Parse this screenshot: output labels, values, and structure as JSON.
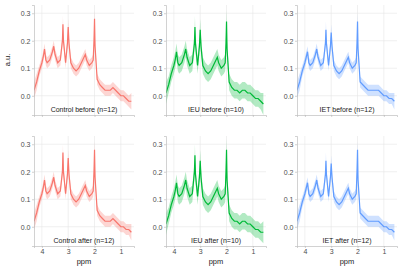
{
  "chart_data": [
    {
      "type": "line",
      "title": "Control before (n=12)",
      "color": "#F8766D",
      "grid": true,
      "tick_labels": "y",
      "y_label": "a.u.",
      "xlim": [
        4.3,
        0.5
      ],
      "xticks": [
        4,
        3,
        2,
        1
      ],
      "ylim": [
        -0.07,
        0.33
      ],
      "yticks": [
        {
          "value": 0,
          "label": "0.0"
        },
        0.1,
        0.2,
        0.3
      ],
      "x": [
        4.3,
        4.2,
        4.1,
        4.0,
        3.95,
        3.9,
        3.85,
        3.8,
        3.7,
        3.6,
        3.55,
        3.5,
        3.4,
        3.3,
        3.22,
        3.2,
        3.18,
        3.1,
        3.03,
        3.0,
        2.97,
        2.9,
        2.8,
        2.7,
        2.6,
        2.5,
        2.4,
        2.35,
        2.3,
        2.2,
        2.1,
        2.05,
        2.02,
        2.0,
        1.98,
        1.9,
        1.8,
        1.7,
        1.6,
        1.5,
        1.4,
        1.3,
        1.2,
        1.1,
        1.0,
        0.9,
        0.8,
        0.7,
        0.6
      ],
      "values": [
        0.02,
        0.05,
        0.09,
        0.12,
        0.14,
        0.17,
        0.13,
        0.12,
        0.13,
        0.16,
        0.18,
        0.15,
        0.12,
        0.13,
        0.2,
        0.26,
        0.2,
        0.12,
        0.19,
        0.25,
        0.19,
        0.12,
        0.1,
        0.09,
        0.1,
        0.12,
        0.14,
        0.15,
        0.13,
        0.11,
        0.12,
        0.13,
        0.2,
        0.28,
        0.18,
        0.06,
        0.04,
        0.03,
        0.02,
        0.02,
        0.02,
        0.03,
        0.02,
        0.01,
        0.0,
        0.0,
        -0.01,
        -0.02,
        -0.02
      ],
      "errors": [
        0.03,
        0.03,
        0.02,
        0.02,
        0.02,
        0.02,
        0.02,
        0.02,
        0.02,
        0.02,
        0.02,
        0.02,
        0.02,
        0.02,
        0.02,
        0.03,
        0.02,
        0.02,
        0.02,
        0.03,
        0.02,
        0.02,
        0.02,
        0.02,
        0.02,
        0.02,
        0.02,
        0.02,
        0.02,
        0.02,
        0.02,
        0.02,
        0.02,
        0.03,
        0.02,
        0.02,
        0.02,
        0.02,
        0.02,
        0.02,
        0.02,
        0.02,
        0.02,
        0.02,
        0.02,
        0.02,
        0.02,
        0.02,
        0.03
      ]
    },
    {
      "type": "line",
      "title": "IEU before (n=10)",
      "color": "#00BA38",
      "grid": true,
      "tick_labels": "y",
      "xlim": [
        4.3,
        0.5
      ],
      "xticks": [
        4,
        3,
        2,
        1
      ],
      "ylim": [
        -0.07,
        0.33
      ],
      "yticks": [
        {
          "value": 0,
          "label": "0.0"
        },
        0.1,
        0.2,
        0.3
      ],
      "x": [
        4.3,
        4.2,
        4.1,
        4.0,
        3.95,
        3.9,
        3.85,
        3.8,
        3.7,
        3.6,
        3.55,
        3.5,
        3.4,
        3.3,
        3.22,
        3.2,
        3.18,
        3.1,
        3.03,
        3.0,
        2.97,
        2.9,
        2.8,
        2.7,
        2.6,
        2.5,
        2.4,
        2.35,
        2.3,
        2.2,
        2.1,
        2.05,
        2.02,
        2.0,
        1.98,
        1.9,
        1.8,
        1.7,
        1.6,
        1.5,
        1.4,
        1.3,
        1.2,
        1.1,
        1.0,
        0.9,
        0.8,
        0.7,
        0.6
      ],
      "values": [
        0.01,
        0.04,
        0.08,
        0.11,
        0.13,
        0.16,
        0.12,
        0.11,
        0.12,
        0.15,
        0.17,
        0.14,
        0.11,
        0.12,
        0.19,
        0.25,
        0.19,
        0.11,
        0.18,
        0.24,
        0.18,
        0.11,
        0.09,
        0.08,
        0.09,
        0.11,
        0.13,
        0.14,
        0.12,
        0.1,
        0.11,
        0.12,
        0.19,
        0.27,
        0.17,
        0.05,
        0.03,
        0.02,
        0.02,
        0.01,
        0.02,
        0.02,
        0.01,
        0.01,
        0.0,
        -0.01,
        -0.01,
        -0.02,
        -0.03
      ],
      "errors": [
        0.04,
        0.03,
        0.03,
        0.03,
        0.03,
        0.03,
        0.03,
        0.03,
        0.03,
        0.03,
        0.03,
        0.03,
        0.03,
        0.03,
        0.03,
        0.04,
        0.03,
        0.03,
        0.03,
        0.04,
        0.03,
        0.03,
        0.03,
        0.03,
        0.03,
        0.03,
        0.03,
        0.03,
        0.03,
        0.03,
        0.03,
        0.03,
        0.03,
        0.04,
        0.03,
        0.03,
        0.03,
        0.03,
        0.03,
        0.03,
        0.03,
        0.03,
        0.03,
        0.03,
        0.03,
        0.03,
        0.03,
        0.03,
        0.04
      ]
    },
    {
      "type": "line",
      "title": "IET before (n=12)",
      "color": "#619CFF",
      "grid": true,
      "tick_labels": "y",
      "xlim": [
        4.3,
        0.5
      ],
      "xticks": [
        4,
        3,
        2,
        1
      ],
      "ylim": [
        -0.07,
        0.33
      ],
      "yticks": [
        {
          "value": 0,
          "label": "0.0"
        },
        0.1,
        0.2,
        0.3
      ],
      "x": [
        4.3,
        4.2,
        4.1,
        4.0,
        3.95,
        3.9,
        3.85,
        3.8,
        3.7,
        3.6,
        3.55,
        3.5,
        3.4,
        3.3,
        3.22,
        3.2,
        3.18,
        3.1,
        3.03,
        3.0,
        2.97,
        2.9,
        2.8,
        2.7,
        2.6,
        2.5,
        2.4,
        2.35,
        2.3,
        2.2,
        2.1,
        2.05,
        2.02,
        2.0,
        1.98,
        1.9,
        1.8,
        1.7,
        1.6,
        1.5,
        1.4,
        1.3,
        1.2,
        1.1,
        1.0,
        0.9,
        0.8,
        0.7,
        0.6
      ],
      "values": [
        0.02,
        0.05,
        0.09,
        0.12,
        0.14,
        0.16,
        0.12,
        0.11,
        0.12,
        0.15,
        0.17,
        0.14,
        0.11,
        0.12,
        0.19,
        0.24,
        0.19,
        0.11,
        0.18,
        0.23,
        0.18,
        0.11,
        0.09,
        0.08,
        0.09,
        0.11,
        0.13,
        0.14,
        0.12,
        0.1,
        0.11,
        0.12,
        0.19,
        0.27,
        0.17,
        0.05,
        0.04,
        0.03,
        0.02,
        0.02,
        0.02,
        0.02,
        0.02,
        0.01,
        0.0,
        0.0,
        -0.01,
        -0.01,
        -0.02
      ],
      "errors": [
        0.03,
        0.03,
        0.02,
        0.02,
        0.02,
        0.02,
        0.02,
        0.02,
        0.02,
        0.02,
        0.02,
        0.02,
        0.02,
        0.02,
        0.02,
        0.03,
        0.02,
        0.02,
        0.02,
        0.03,
        0.02,
        0.02,
        0.02,
        0.02,
        0.02,
        0.02,
        0.02,
        0.02,
        0.02,
        0.02,
        0.02,
        0.02,
        0.02,
        0.03,
        0.02,
        0.02,
        0.02,
        0.02,
        0.02,
        0.02,
        0.02,
        0.02,
        0.02,
        0.02,
        0.02,
        0.02,
        0.02,
        0.02,
        0.03
      ]
    },
    {
      "type": "line",
      "title": "Control after (n=12)",
      "color": "#F8766D",
      "grid": true,
      "x_label": "ppm",
      "xlim": [
        4.3,
        0.5
      ],
      "xticks": [
        4,
        3,
        2,
        1
      ],
      "ylim": [
        -0.07,
        0.33
      ],
      "yticks": [
        {
          "value": 0,
          "label": "0.0"
        },
        0.1,
        0.2,
        0.3
      ],
      "x": [
        4.3,
        4.2,
        4.1,
        4.0,
        3.95,
        3.9,
        3.85,
        3.8,
        3.7,
        3.6,
        3.55,
        3.5,
        3.4,
        3.3,
        3.22,
        3.2,
        3.18,
        3.1,
        3.03,
        3.0,
        2.97,
        2.9,
        2.8,
        2.7,
        2.6,
        2.5,
        2.4,
        2.35,
        2.3,
        2.2,
        2.1,
        2.05,
        2.02,
        2.0,
        1.98,
        1.9,
        1.8,
        1.7,
        1.6,
        1.5,
        1.4,
        1.3,
        1.2,
        1.1,
        1.0,
        0.9,
        0.8,
        0.7,
        0.6
      ],
      "values": [
        0.02,
        0.05,
        0.09,
        0.12,
        0.14,
        0.17,
        0.13,
        0.12,
        0.13,
        0.16,
        0.18,
        0.15,
        0.12,
        0.13,
        0.2,
        0.27,
        0.2,
        0.12,
        0.19,
        0.25,
        0.19,
        0.12,
        0.1,
        0.09,
        0.1,
        0.12,
        0.14,
        0.15,
        0.13,
        0.11,
        0.12,
        0.13,
        0.2,
        0.28,
        0.18,
        0.06,
        0.04,
        0.03,
        0.02,
        0.02,
        0.02,
        0.03,
        0.02,
        0.01,
        0.0,
        0.0,
        -0.01,
        -0.01,
        -0.02
      ],
      "errors": [
        0.03,
        0.03,
        0.02,
        0.02,
        0.02,
        0.02,
        0.02,
        0.02,
        0.02,
        0.02,
        0.02,
        0.02,
        0.02,
        0.02,
        0.02,
        0.03,
        0.02,
        0.02,
        0.02,
        0.03,
        0.02,
        0.02,
        0.02,
        0.02,
        0.02,
        0.02,
        0.02,
        0.02,
        0.02,
        0.02,
        0.02,
        0.02,
        0.02,
        0.03,
        0.02,
        0.02,
        0.02,
        0.02,
        0.02,
        0.02,
        0.02,
        0.02,
        0.02,
        0.02,
        0.02,
        0.02,
        0.02,
        0.02,
        0.03
      ]
    },
    {
      "type": "line",
      "title": "IEU after (n=10)",
      "color": "#00BA38",
      "grid": true,
      "x_label": "ppm",
      "xlim": [
        4.3,
        0.5
      ],
      "xticks": [
        4,
        3,
        2,
        1
      ],
      "ylim": [
        -0.07,
        0.33
      ],
      "yticks": [
        {
          "value": 0,
          "label": "0.0"
        },
        0.1,
        0.2,
        0.3
      ],
      "x": [
        4.3,
        4.2,
        4.1,
        4.0,
        3.95,
        3.9,
        3.85,
        3.8,
        3.7,
        3.6,
        3.55,
        3.5,
        3.4,
        3.3,
        3.22,
        3.2,
        3.18,
        3.1,
        3.03,
        3.0,
        2.97,
        2.9,
        2.8,
        2.7,
        2.6,
        2.5,
        2.4,
        2.35,
        2.3,
        2.2,
        2.1,
        2.05,
        2.02,
        2.0,
        1.98,
        1.9,
        1.8,
        1.7,
        1.6,
        1.5,
        1.4,
        1.3,
        1.2,
        1.1,
        1.0,
        0.9,
        0.8,
        0.7,
        0.6
      ],
      "values": [
        0.01,
        0.04,
        0.08,
        0.11,
        0.13,
        0.16,
        0.12,
        0.11,
        0.12,
        0.15,
        0.17,
        0.14,
        0.11,
        0.12,
        0.2,
        0.26,
        0.19,
        0.11,
        0.18,
        0.24,
        0.18,
        0.11,
        0.09,
        0.08,
        0.09,
        0.11,
        0.13,
        0.14,
        0.12,
        0.1,
        0.11,
        0.12,
        0.2,
        0.28,
        0.17,
        0.05,
        0.03,
        0.02,
        0.02,
        0.01,
        0.02,
        0.02,
        0.01,
        0.01,
        0.0,
        -0.01,
        -0.01,
        -0.02,
        -0.02
      ],
      "errors": [
        0.04,
        0.03,
        0.03,
        0.03,
        0.03,
        0.03,
        0.03,
        0.03,
        0.03,
        0.03,
        0.03,
        0.03,
        0.03,
        0.03,
        0.03,
        0.04,
        0.03,
        0.03,
        0.03,
        0.04,
        0.03,
        0.03,
        0.03,
        0.03,
        0.03,
        0.03,
        0.03,
        0.03,
        0.03,
        0.03,
        0.03,
        0.03,
        0.03,
        0.04,
        0.03,
        0.03,
        0.03,
        0.03,
        0.03,
        0.03,
        0.03,
        0.03,
        0.03,
        0.03,
        0.03,
        0.03,
        0.03,
        0.03,
        0.04
      ]
    },
    {
      "type": "line",
      "title": "IET after (n=12)",
      "color": "#619CFF",
      "grid": true,
      "x_label": "ppm",
      "xlim": [
        4.3,
        0.5
      ],
      "xticks": [
        4,
        3,
        2,
        1
      ],
      "ylim": [
        -0.07,
        0.33
      ],
      "yticks": [
        {
          "value": 0,
          "label": "0.0"
        },
        0.1,
        0.2,
        0.3
      ],
      "x": [
        4.3,
        4.2,
        4.1,
        4.0,
        3.95,
        3.9,
        3.85,
        3.8,
        3.7,
        3.6,
        3.55,
        3.5,
        3.4,
        3.3,
        3.22,
        3.2,
        3.18,
        3.1,
        3.03,
        3.0,
        2.97,
        2.9,
        2.8,
        2.7,
        2.6,
        2.5,
        2.4,
        2.35,
        2.3,
        2.2,
        2.1,
        2.05,
        2.02,
        2.0,
        1.98,
        1.9,
        1.8,
        1.7,
        1.6,
        1.5,
        1.4,
        1.3,
        1.2,
        1.1,
        1.0,
        0.9,
        0.8,
        0.7,
        0.6
      ],
      "values": [
        0.02,
        0.05,
        0.09,
        0.12,
        0.14,
        0.16,
        0.12,
        0.11,
        0.12,
        0.15,
        0.17,
        0.14,
        0.11,
        0.12,
        0.19,
        0.24,
        0.19,
        0.11,
        0.18,
        0.23,
        0.18,
        0.11,
        0.09,
        0.08,
        0.09,
        0.11,
        0.13,
        0.14,
        0.12,
        0.1,
        0.11,
        0.12,
        0.2,
        0.28,
        0.17,
        0.05,
        0.04,
        0.03,
        0.02,
        0.02,
        0.02,
        0.02,
        0.02,
        0.01,
        0.0,
        0.0,
        -0.01,
        -0.01,
        -0.02
      ],
      "errors": [
        0.03,
        0.03,
        0.02,
        0.02,
        0.02,
        0.02,
        0.02,
        0.02,
        0.02,
        0.02,
        0.02,
        0.02,
        0.02,
        0.02,
        0.02,
        0.03,
        0.02,
        0.02,
        0.02,
        0.03,
        0.02,
        0.02,
        0.02,
        0.02,
        0.02,
        0.02,
        0.02,
        0.02,
        0.02,
        0.02,
        0.02,
        0.02,
        0.02,
        0.03,
        0.02,
        0.02,
        0.02,
        0.02,
        0.02,
        0.02,
        0.02,
        0.02,
        0.02,
        0.02,
        0.02,
        0.02,
        0.02,
        0.02,
        0.03
      ]
    }
  ]
}
